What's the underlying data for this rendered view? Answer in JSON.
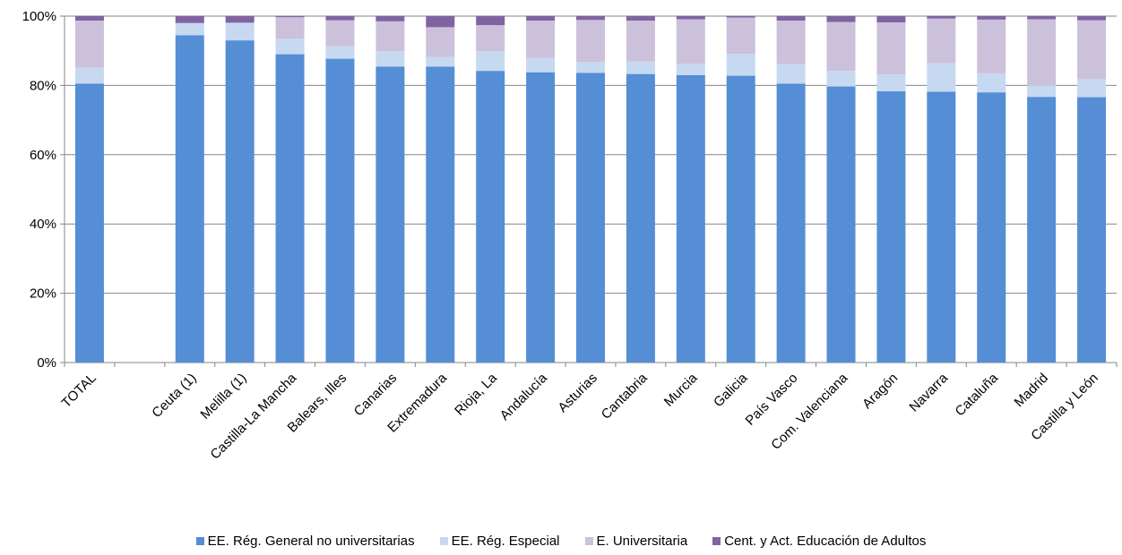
{
  "chart_data": {
    "type": "bar",
    "stacked": true,
    "percent": true,
    "categories": [
      "TOTAL",
      "",
      "Ceuta (1)",
      "Melilla (1)",
      "Castilla-La Mancha",
      "Balears, Illes",
      "Canarias",
      "Extremadura",
      "Rioja, La",
      "Andalucía",
      "Asturias",
      "Cantabria",
      "Murcia",
      "Galicia",
      "País Vasco",
      "Com. Valenciana",
      "Aragón",
      "Navarra",
      "Cataluña",
      "Madrid",
      "Castilla y León"
    ],
    "series": [
      {
        "name": "EE. Rég. General no universitarias",
        "color": "#558ed5",
        "values": [
          80.5,
          null,
          94.5,
          93.0,
          89.0,
          87.7,
          85.4,
          85.4,
          84.2,
          83.8,
          83.6,
          83.3,
          83.0,
          82.8,
          80.5,
          79.7,
          78.3,
          78.2,
          78.0,
          76.7,
          76.6
        ]
      },
      {
        "name": "EE. Rég. Especial",
        "color": "#c6d9f1",
        "values": [
          4.6,
          null,
          3.5,
          5.1,
          4.5,
          3.6,
          4.5,
          2.8,
          5.7,
          4.1,
          3.2,
          3.6,
          3.2,
          6.3,
          5.6,
          4.5,
          4.9,
          8.2,
          5.5,
          3.3,
          5.2
        ]
      },
      {
        "name": "E. Universitaria",
        "color": "#ccc1da",
        "values": [
          13.6,
          null,
          0.0,
          0.0,
          6.2,
          7.5,
          8.6,
          8.6,
          7.5,
          10.8,
          12.1,
          11.8,
          12.9,
          10.5,
          12.6,
          14.1,
          15.0,
          12.9,
          15.5,
          19.1,
          17.0
        ]
      },
      {
        "name": "Cent. y Act. Educación de Adultos",
        "color": "#8064a2",
        "values": [
          1.3,
          null,
          2.0,
          1.9,
          0.3,
          1.2,
          1.5,
          3.2,
          2.6,
          1.3,
          1.1,
          1.3,
          0.9,
          0.4,
          1.3,
          1.7,
          1.8,
          0.7,
          1.0,
          0.9,
          1.2
        ]
      }
    ],
    "yticks": [
      "0%",
      "20%",
      "40%",
      "60%",
      "80%",
      "100%"
    ],
    "ylim": [
      0,
      100
    ],
    "title": "",
    "xlabel": "",
    "ylabel": "",
    "legend_position": "bottom",
    "grid": "horizontal"
  }
}
